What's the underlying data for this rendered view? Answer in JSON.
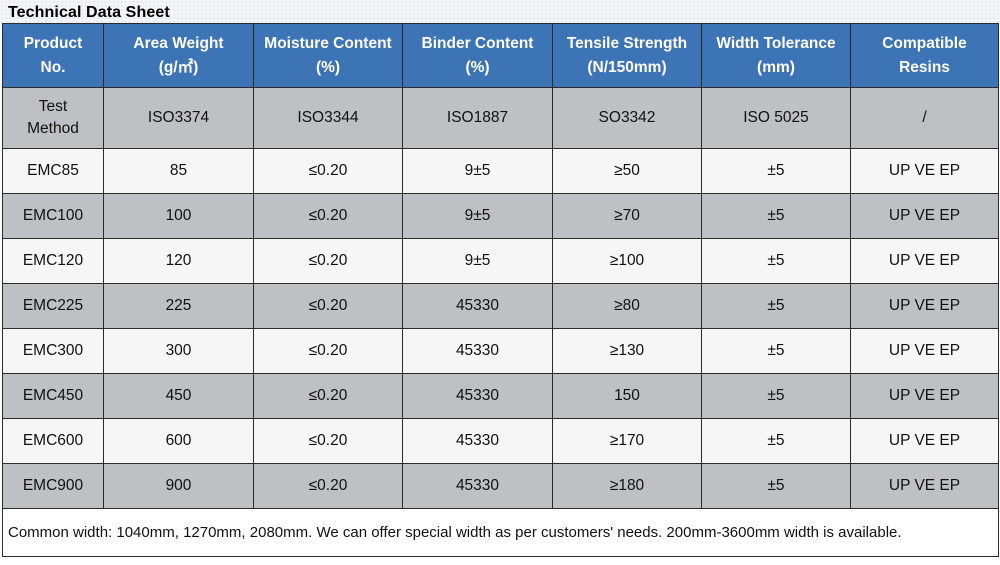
{
  "title": "Technical Data Sheet",
  "headers": [
    {
      "line1": "Product",
      "line2": "No."
    },
    {
      "line1": "Area Weight",
      "line2": "(g/㎡)"
    },
    {
      "line1": "Moisture Content",
      "line2": "(%)"
    },
    {
      "line1": "Binder Content",
      "line2": "(%)"
    },
    {
      "line1": "Tensile Strength",
      "line2": "(N/150mm)"
    },
    {
      "line1": "Width Tolerance",
      "line2": "(mm)"
    },
    {
      "line1": "Compatible",
      "line2": "Resins"
    }
  ],
  "test_method": {
    "label_line1": "Test",
    "label_line2": "Method",
    "values": [
      "ISO3374",
      "ISO3344",
      "ISO1887",
      "SO3342",
      "ISO 5025",
      "/"
    ]
  },
  "rows": [
    [
      "EMC85",
      "85",
      "≤0.20",
      "9±5",
      "≥50",
      "±5",
      "UP VE EP"
    ],
    [
      "EMC100",
      "100",
      "≤0.20",
      "9±5",
      "≥70",
      "±5",
      "UP VE EP"
    ],
    [
      "EMC120",
      "120",
      "≤0.20",
      "9±5",
      "≥100",
      "±5",
      "UP VE EP"
    ],
    [
      "EMC225",
      "225",
      "≤0.20",
      "45330",
      "≥80",
      "±5",
      "UP VE EP"
    ],
    [
      "EMC300",
      "300",
      "≤0.20",
      "45330",
      "≥130",
      "±5",
      "UP VE EP"
    ],
    [
      "EMC450",
      "450",
      "≤0.20",
      "45330",
      "150",
      "±5",
      "UP VE EP"
    ],
    [
      "EMC600",
      "600",
      "≤0.20",
      "45330",
      "≥170",
      "±5",
      "UP VE EP"
    ],
    [
      "EMC900",
      "900",
      "≤0.20",
      "45330",
      "≥180",
      "±5",
      "UP VE EP"
    ]
  ],
  "note": "Common width: 1040mm, 1270mm, 2080mm. We can offer special width as per customers' needs. 200mm-3600mm width is available.",
  "colors": {
    "header_bg": "#3d74b6",
    "header_text": "#ffffff",
    "row_gray": "#bfc0c3",
    "row_white": "#f6f6f6",
    "border": "#2b2b2b"
  }
}
